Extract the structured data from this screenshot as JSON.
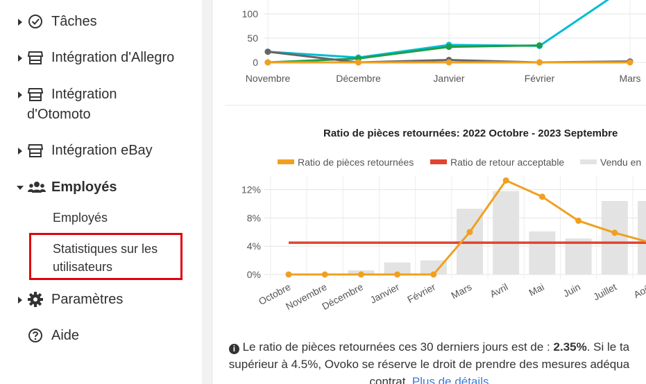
{
  "sidebar": {
    "items": [
      {
        "label": "Tâches",
        "icon": "check-circle-icon"
      },
      {
        "label": "Intégration d'Allegro",
        "icon": "store-icon"
      },
      {
        "label_line1": "Intégration",
        "label_line2": "d'Otomoto",
        "icon": "store-icon"
      },
      {
        "label": "Intégration eBay",
        "icon": "store-icon"
      },
      {
        "label": "Employés",
        "icon": "users-icon"
      },
      {
        "label": "Paramètres",
        "icon": "gear-icon"
      },
      {
        "label": "Aide",
        "icon": "question-circle-icon"
      }
    ],
    "subitems": [
      {
        "label": "Employés"
      },
      {
        "label_line1": "Statistiques sur les",
        "label_line2": "utilisateurs"
      }
    ]
  },
  "chart_data": [
    {
      "type": "line",
      "categories": [
        "Novembre",
        "Décembre",
        "Janvier",
        "Février",
        "Mars"
      ],
      "y_ticks": [
        "100",
        "50",
        "0"
      ],
      "series": [
        {
          "color": "#00bcd4",
          "values": [
            22,
            10,
            36,
            34,
            160
          ]
        },
        {
          "color": "#1e9e4a",
          "values": [
            0,
            8,
            32,
            35,
            null
          ]
        },
        {
          "color": "#666666",
          "values": [
            22,
            0,
            5,
            0,
            2
          ]
        },
        {
          "color": "#f0a020",
          "values": [
            0,
            0,
            0,
            0,
            0
          ]
        }
      ]
    },
    {
      "type": "bar",
      "title": "Ratio de pièces retournées: 2022 Octobre - 2023 Septembre",
      "legend": [
        "Ratio de pièces retournées",
        "Ratio de retour acceptable",
        "Vendu en"
      ],
      "categories": [
        "Octobre",
        "Novembre",
        "Décembre",
        "Janvier",
        "Février",
        "Mars",
        "Avril",
        "Mai",
        "Juin",
        "Juillet",
        "Août"
      ],
      "y_ticks": [
        "12%",
        "8%",
        "4%",
        "0%"
      ],
      "ylim": [
        0,
        14
      ],
      "bars": [
        0,
        0,
        0.6,
        1.7,
        2.0,
        9.3,
        11.8,
        6.1,
        5.1,
        10.4,
        10.4
      ],
      "ratio": [
        0,
        0,
        0,
        0,
        0,
        6.0,
        13.3,
        11.0,
        7.6,
        5.9,
        4.5
      ],
      "acceptable": 4.5,
      "colors": {
        "ratio": "#f0a020",
        "acceptable": "#e04530",
        "bars": "#e3e3e3"
      }
    }
  ],
  "info": {
    "line1_pre": " Le ratio de pièces retournées ces 30 derniers jours est de : ",
    "value": "2.35%",
    "line1_post": ". Si le ta",
    "line2": "supérieur à 4.5%, Ovoko se réserve le droit de prendre des mesures adéqua",
    "line3_pre": "contrat. ",
    "link": "Plus de détails"
  }
}
